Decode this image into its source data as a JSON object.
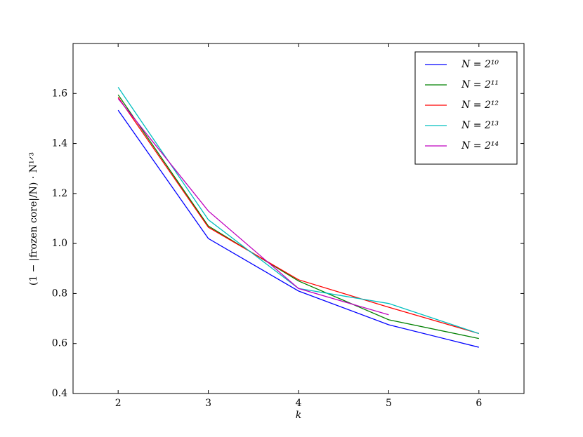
{
  "chart_data": {
    "type": "line",
    "x_label": "k",
    "y_label": "(1 − |frozen core|/N) · N¹ᐟ³",
    "x": [
      2,
      3,
      4,
      5,
      6
    ],
    "xlim": [
      1.5,
      6.5
    ],
    "xticks": [
      2,
      3,
      4,
      5,
      6
    ],
    "ylim": [
      0.4,
      1.8
    ],
    "yticks": [
      0.4,
      0.6,
      0.8,
      {
        "value": 1,
        "label": "1.0"
      },
      1.2,
      1.4,
      1.6
    ],
    "legend": "upper right",
    "series": [
      {
        "name": "N = 2¹⁰",
        "color": "#0000ff",
        "values": [
          1.533,
          1.02,
          0.81,
          0.675,
          0.585
        ]
      },
      {
        "name": "N = 2¹¹",
        "color": "#008000",
        "values": [
          1.595,
          1.07,
          0.85,
          0.695,
          0.62
        ]
      },
      {
        "name": "N = 2¹²",
        "color": "#ff0000",
        "values": [
          1.585,
          1.065,
          0.855,
          0.745,
          0.64
        ]
      },
      {
        "name": "N = 2¹³",
        "color": "#00bfbf",
        "values": [
          1.625,
          1.095,
          0.82,
          0.76,
          0.64
        ]
      },
      {
        "name": "N = 2¹⁴",
        "color": "#bf00bf",
        "values": [
          1.58,
          1.13,
          0.82,
          0.715,
          null
        ]
      }
    ]
  }
}
